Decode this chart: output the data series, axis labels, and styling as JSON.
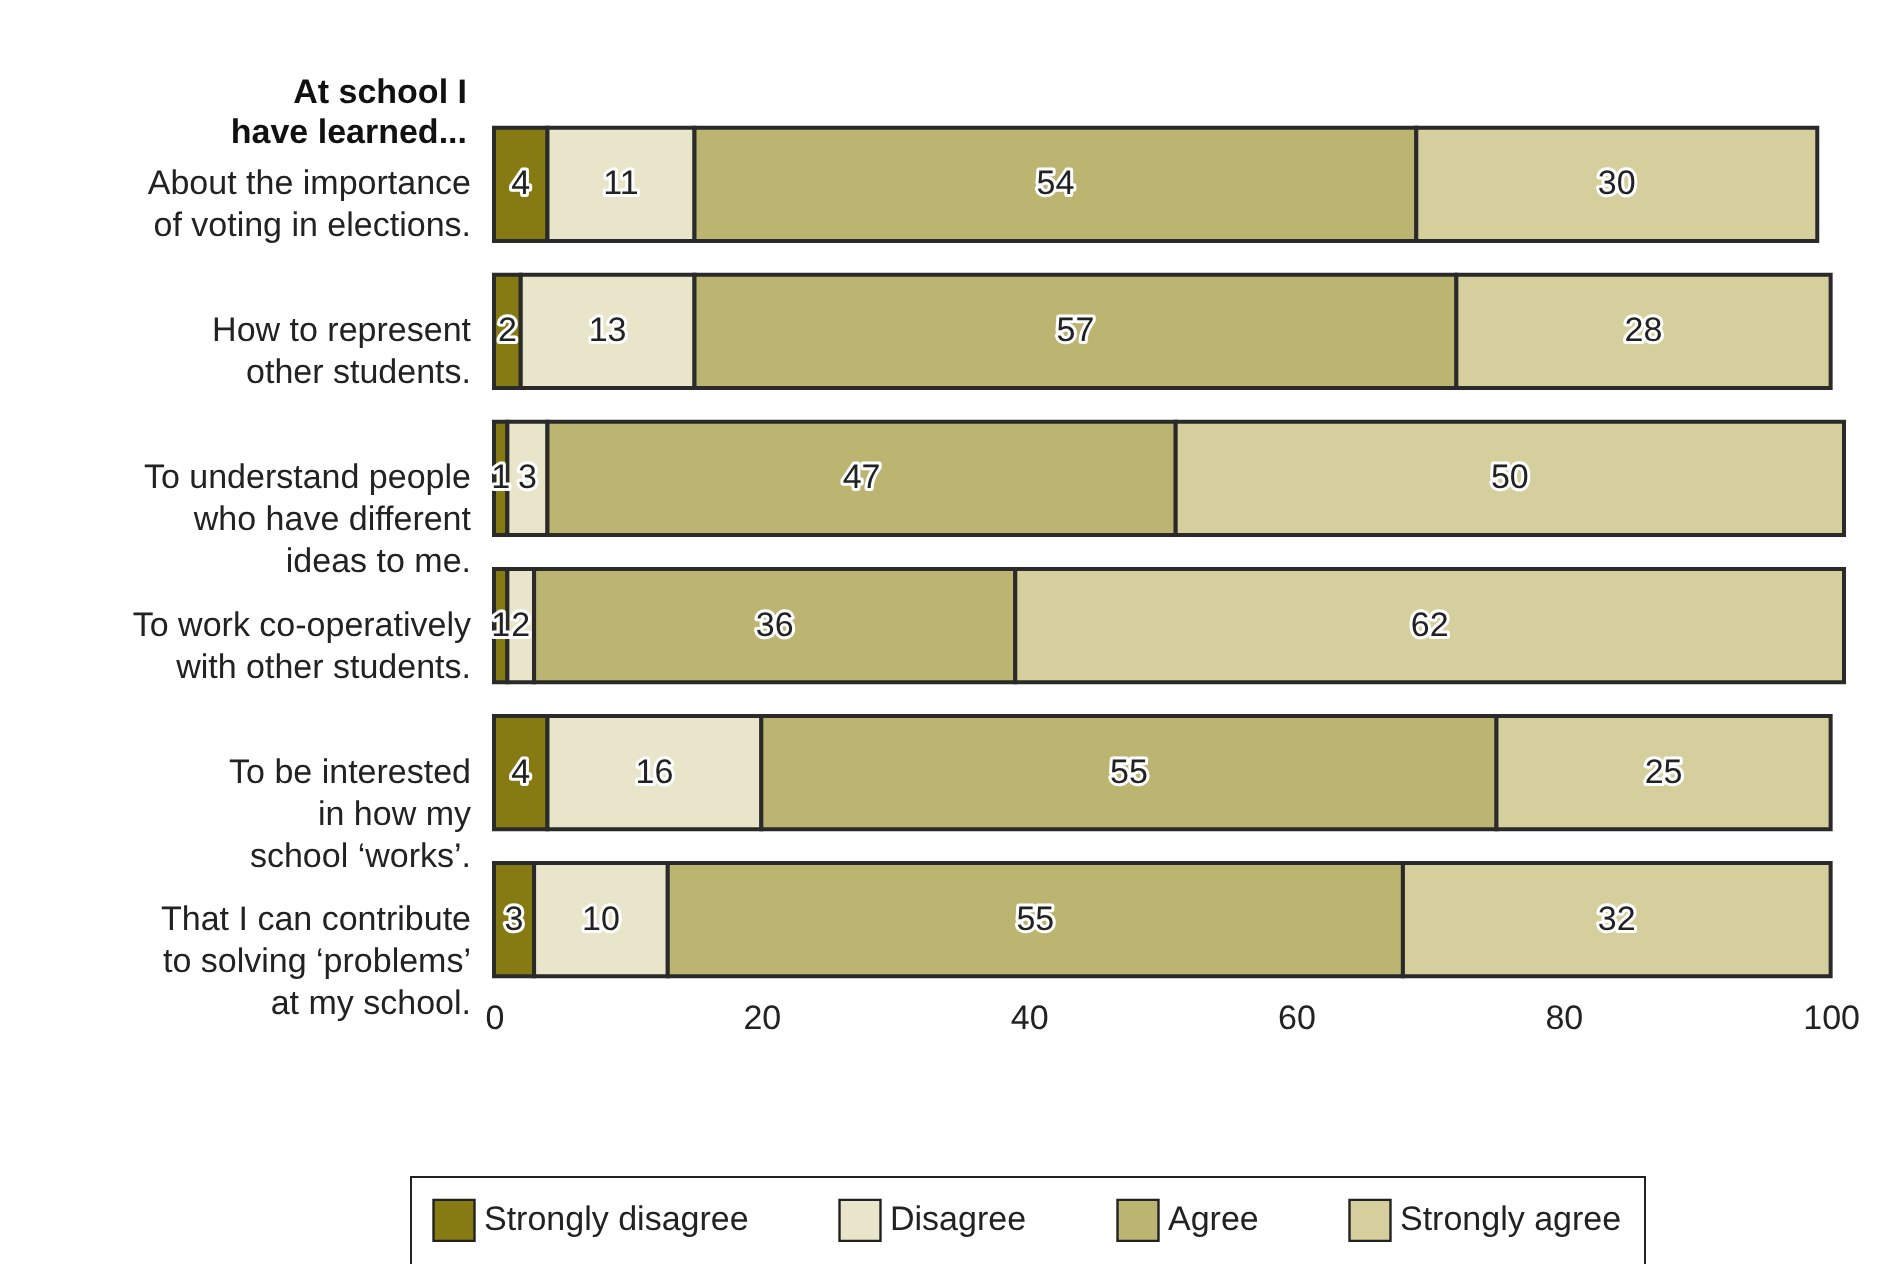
{
  "chart_data": {
    "type": "bar",
    "orientation": "horizontal",
    "stacked": true,
    "ylabel": "At school I\nhave learned...",
    "categories": [
      "About the importance\nof voting in elections.",
      "How to represent\nother students.",
      "To understand people\nwho have different\nideas to me.",
      "To work co-operatively\nwith other students.",
      "To be interested\nin how my\nschool ‘works’.",
      "That I can contribute\nto solving ‘problems’\nat my school."
    ],
    "series": [
      {
        "name": "Strongly disagree",
        "color": "#857b12",
        "values": [
          4,
          2,
          1,
          1,
          4,
          3
        ]
      },
      {
        "name": "Disagree",
        "color": "#e9e5cb",
        "values": [
          11,
          13,
          3,
          2,
          16,
          10
        ]
      },
      {
        "name": "Agree",
        "color": "#bcb471",
        "values": [
          54,
          57,
          47,
          36,
          55,
          55
        ]
      },
      {
        "name": "Strongly agree",
        "color": "#d5cf9e",
        "values": [
          30,
          28,
          50,
          62,
          25,
          32
        ]
      }
    ],
    "xlim": [
      0,
      101
    ],
    "xticks": [
      0,
      20,
      40,
      60,
      80,
      100
    ],
    "data_labels": true,
    "grid": false,
    "legend": "bottom"
  }
}
